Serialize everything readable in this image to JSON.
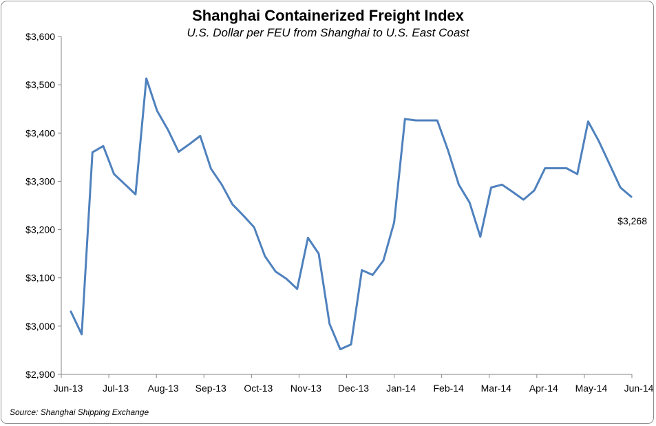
{
  "chart_data": {
    "type": "line",
    "title": "Shanghai Containerized Freight Index",
    "subtitle": "U.S. Dollar per FEU from Shanghai to U.S. East Coast",
    "source": "Source: Shanghai Shipping Exchange",
    "xlabel": "",
    "ylabel": "",
    "ylim": [
      2900,
      3600
    ],
    "y_ticks": [
      "$2,900",
      "$3,000",
      "$3,100",
      "$3,200",
      "$3,300",
      "$3,400",
      "$3,500",
      "$3,600"
    ],
    "x_tick_labels": [
      "Jun-13",
      "Jul-13",
      "Aug-13",
      "Sep-13",
      "Oct-13",
      "Nov-13",
      "Dec-13",
      "Jan-14",
      "Feb-14",
      "Mar-14",
      "Apr-14",
      "May-14",
      "Jun-14"
    ],
    "grid": false,
    "line_color": "#4f81bd",
    "end_label": "$3,268",
    "series": [
      {
        "values": [
          3030,
          2983,
          3360,
          3373,
          3315,
          3294,
          3273,
          3513,
          3446,
          3407,
          3361,
          3377,
          3394,
          3326,
          3293,
          3252,
          3229,
          3205,
          3145,
          3113,
          3098,
          3077,
          3183,
          3150,
          3005,
          2952,
          2962,
          3116,
          3106,
          3136,
          3215,
          3429,
          3426,
          3426,
          3426,
          3364,
          3293,
          3256,
          3185,
          3287,
          3293,
          3278,
          3262,
          3281,
          3327,
          3327,
          3327,
          3315,
          3424,
          3383,
          3335,
          3287,
          3268
        ]
      }
    ]
  }
}
